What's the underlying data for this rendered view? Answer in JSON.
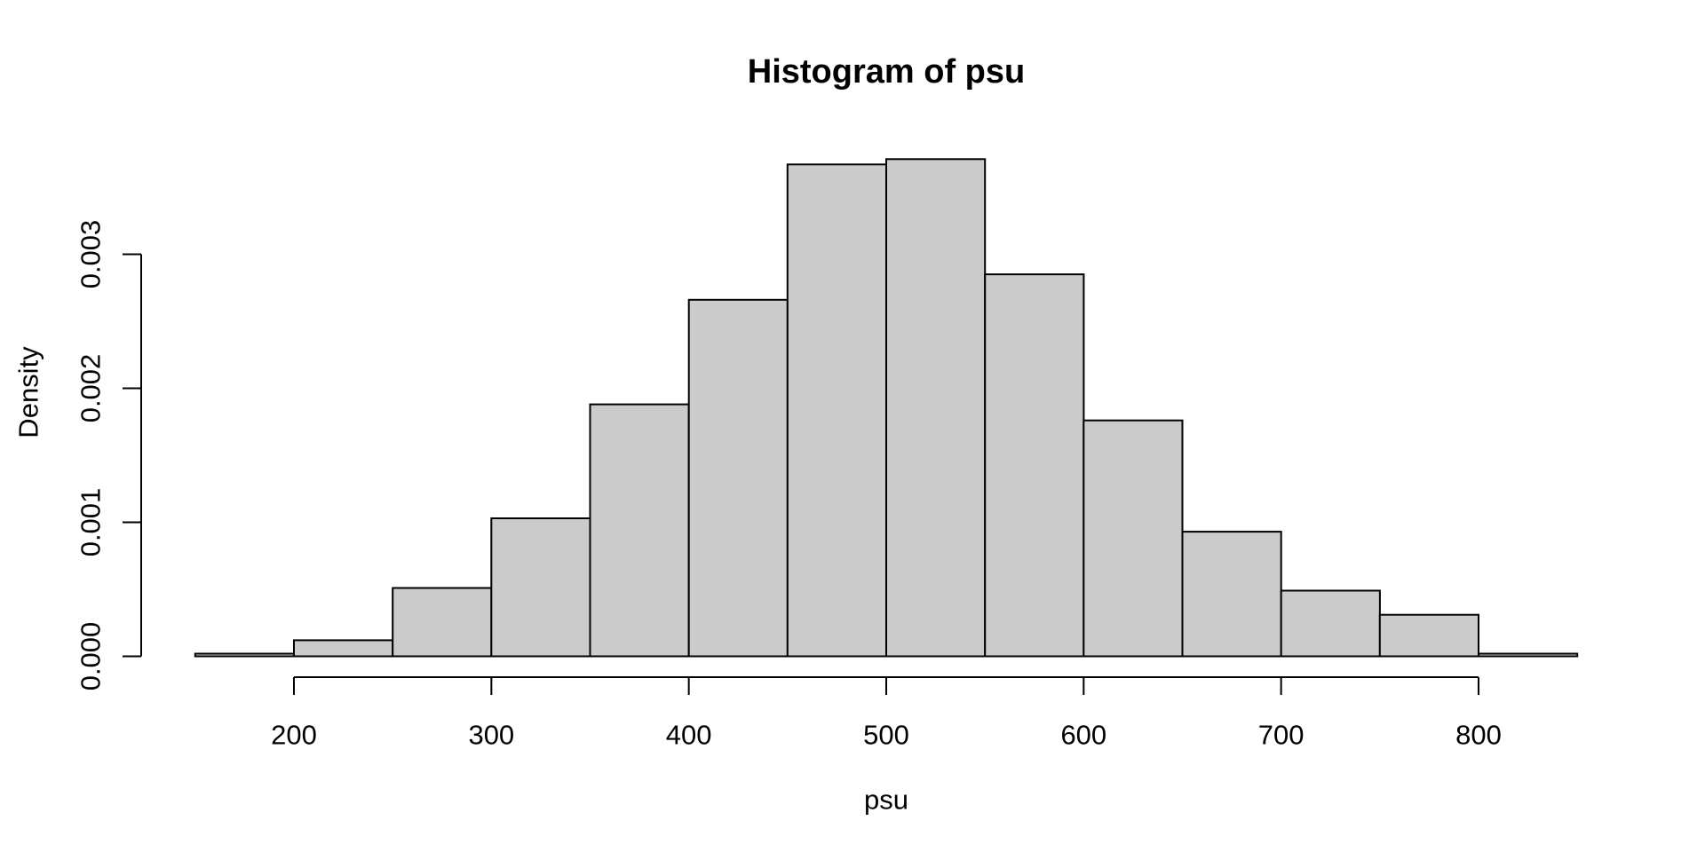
{
  "chart_data": {
    "type": "bar",
    "subtype": "histogram",
    "title": "Histogram of psu",
    "xlabel": "psu",
    "ylabel": "Density",
    "bin_width": 50,
    "bin_edges": [
      150,
      200,
      250,
      300,
      350,
      400,
      450,
      500,
      550,
      600,
      650,
      700,
      750,
      800,
      850
    ],
    "densities": [
      2e-05,
      0.00012,
      0.00051,
      0.00103,
      0.00188,
      0.00266,
      0.00367,
      0.00371,
      0.00285,
      0.00176,
      0.00093,
      0.00049,
      0.00031,
      2e-05
    ],
    "x_ticks": [
      200,
      300,
      400,
      500,
      600,
      700,
      800
    ],
    "y_ticks": [
      "0.000",
      "0.001",
      "0.002",
      "0.003"
    ],
    "xlim": [
      150,
      850
    ],
    "ylim": [
      0,
      0.0037
    ],
    "grid": false,
    "legend": null,
    "bar_fill": "#CBCBCB",
    "bar_border": "#000000",
    "axis_color": "#000000",
    "background": "#FFFFFF"
  }
}
